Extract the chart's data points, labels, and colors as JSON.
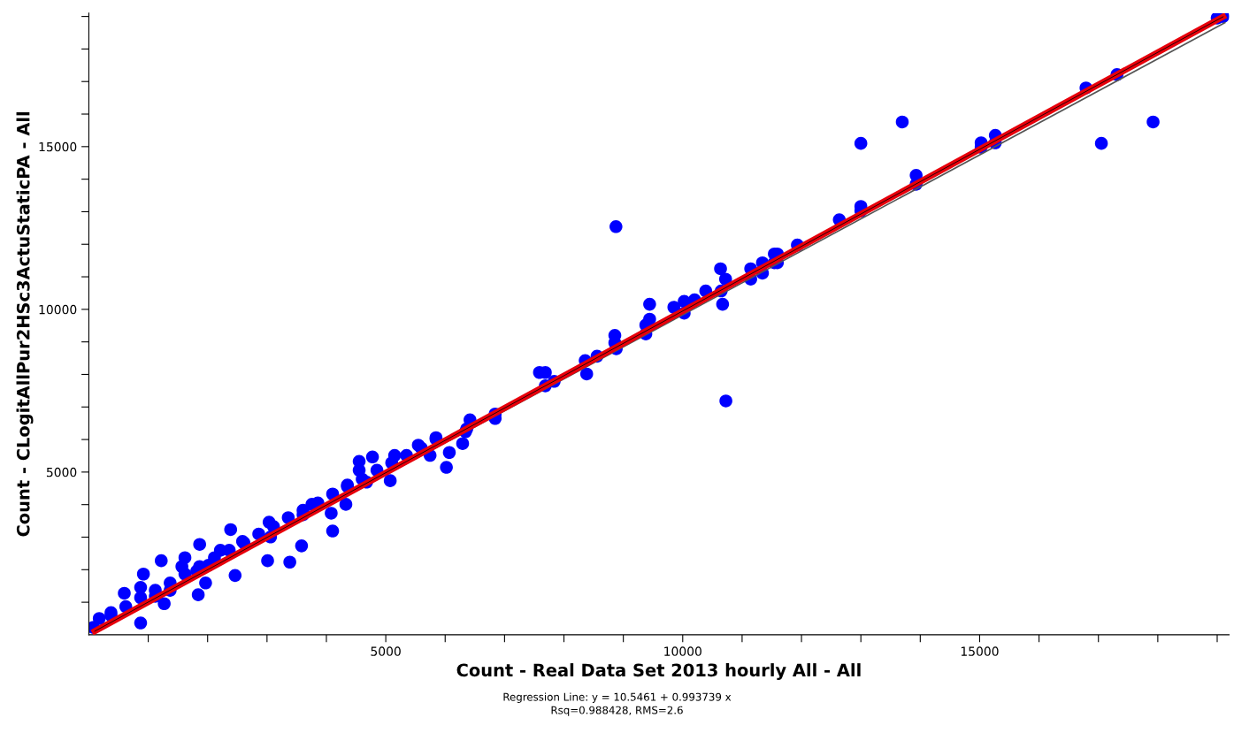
{
  "chart_data": {
    "type": "scatter",
    "xlabel": "Count - Real Data Set 2013 hourly All - All",
    "ylabel": "Count - CLogitAllPur2HSc3ActuStaticPA - All",
    "annotations": [
      "Regression Line: y = 10.5461 + 0.993739 x",
      "Rsq=0.988428, RMS=2.6"
    ],
    "xlim": [
      0,
      19200
    ],
    "ylim": [
      0,
      19100
    ],
    "xticks": [
      {
        "value": 1000,
        "label": null
      },
      {
        "value": 2000,
        "label": null
      },
      {
        "value": 3000,
        "label": null
      },
      {
        "value": 4000,
        "label": null
      },
      5000,
      {
        "value": 6000,
        "label": null
      },
      {
        "value": 7000,
        "label": null
      },
      {
        "value": 8000,
        "label": null
      },
      {
        "value": 9000,
        "label": null
      },
      10000,
      {
        "value": 11000,
        "label": null
      },
      {
        "value": 12000,
        "label": null
      },
      {
        "value": 13000,
        "label": null
      },
      {
        "value": 14000,
        "label": null
      },
      15000,
      {
        "value": 16000,
        "label": null
      },
      {
        "value": 17000,
        "label": null
      },
      {
        "value": 18000,
        "label": null
      },
      {
        "value": 19000,
        "label": null
      }
    ],
    "yticks": [
      {
        "value": 1000,
        "label": null
      },
      {
        "value": 2000,
        "label": null
      },
      {
        "value": 3000,
        "label": null
      },
      {
        "value": 4000,
        "label": null
      },
      5000,
      {
        "value": 6000,
        "label": null
      },
      {
        "value": 7000,
        "label": null
      },
      {
        "value": 8000,
        "label": null
      },
      {
        "value": 9000,
        "label": null
      },
      10000,
      {
        "value": 11000,
        "label": null
      },
      {
        "value": 12000,
        "label": null
      },
      {
        "value": 13000,
        "label": null
      },
      {
        "value": 14000,
        "label": null
      },
      15000,
      {
        "value": 16000,
        "label": null
      },
      {
        "value": 17000,
        "label": null
      },
      {
        "value": 18000,
        "label": null
      },
      {
        "value": 19000,
        "label": null
      }
    ],
    "grid": false,
    "legend": false,
    "marker": "circle",
    "series": [
      {
        "color": "#0000ff",
        "x": [
          13000,
          13697,
          17050,
          17921,
          19100,
          19000,
          17313,
          16791,
          15264,
          15264,
          15025,
          15025,
          13931,
          13931,
          13000,
          13000,
          12637,
          11931,
          11594,
          11594,
          11543,
          11543,
          11343,
          11343,
          11145,
          11145,
          10637,
          10722,
          10648,
          10672,
          10388,
          10200,
          10025,
          10025,
          9851,
          9443,
          9443,
          9379,
          9379,
          8857,
          8857,
          8881,
          8558,
          8358,
          8383,
          7588,
          7687,
          7687,
          7836,
          6842,
          6842,
          6418,
          6364,
          8876,
          10727,
          6343,
          6294,
          6070,
          6021,
          5846,
          5746,
          5548,
          5149,
          5075,
          4776,
          4552,
          4552,
          4677,
          4354,
          4328,
          4081,
          4105,
          3757,
          3607,
          3582,
          3384,
          3010,
          3060,
          3035,
          2588,
          2388,
          2463,
          2215,
          1866,
          1842,
          1618,
          1567,
          1219,
          919,
          597,
          872,
          1119,
          1369,
          1269,
          872,
          175,
          75,
          373,
          1966,
          1817,
          2015,
          373,
          622,
          872,
          1119,
          1369,
          1618,
          1866,
          2115,
          2364,
          2612,
          2861,
          3110,
          3358,
          3607,
          3857,
          4105,
          4354,
          4603,
          4851,
          5100,
          5349,
          5597,
          5846
        ],
        "values": [
          15100,
          15757,
          15100,
          15757,
          19000,
          18950,
          17213,
          16803,
          15346,
          15118,
          15118,
          14981,
          14117,
          13844,
          13161,
          13024,
          12751,
          11976,
          11703,
          11430,
          11703,
          11430,
          11430,
          11111,
          11248,
          10929,
          11248,
          10929,
          10565,
          10156,
          10565,
          10292,
          10246,
          9882,
          10064,
          10156,
          9699,
          9517,
          9244,
          9198,
          8970,
          8788,
          8560,
          8424,
          8014,
          8060,
          8060,
          7650,
          7787,
          6785,
          6648,
          6604,
          6330,
          12541,
          7186,
          6238,
          5874,
          5601,
          5145,
          6057,
          5511,
          5828,
          5511,
          4735,
          5464,
          5328,
          5055,
          4691,
          4599,
          4008,
          3735,
          3188,
          4008,
          3689,
          2732,
          2232,
          2276,
          3005,
          3461,
          2869,
          3232,
          1822,
          2596,
          2778,
          1230,
          2369,
          2096,
          2276,
          1866,
          1276,
          1456,
          1183,
          1366,
          956,
          363,
          500,
          227,
          683,
          1593,
          1959,
          2139,
          593,
          866,
          1139,
          1366,
          1593,
          1866,
          2096,
          2369,
          2596,
          2823,
          3096,
          3325,
          3598,
          3825,
          4052,
          4325,
          4555,
          4781,
          5055,
          5282,
          5511,
          5738,
          6011
        ]
      },
      {
        "type": "line",
        "color": "#555555",
        "x": [
          100,
          19130
        ],
        "values": [
          100,
          18806
        ],
        "marker": "none"
      },
      {
        "type": "line",
        "color": "#e8000b",
        "x": [
          100,
          19100
        ],
        "values": [
          110,
          18991
        ],
        "marker": "none"
      }
    ]
  }
}
